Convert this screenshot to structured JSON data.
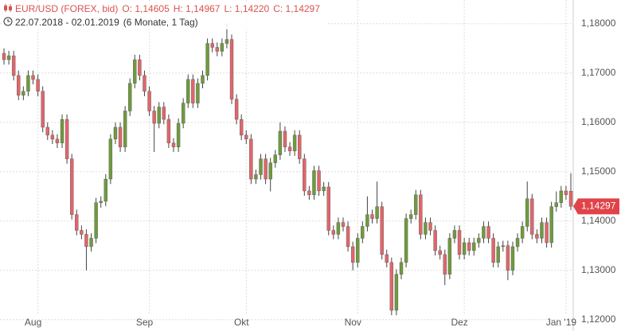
{
  "header": {
    "symbol": "EUR/USD (FOREX, bid)",
    "open": "O: 1,14605",
    "high": "H: 1,14967",
    "low": "L: 1,14220",
    "close": "C: 1,14297",
    "range": "22.07.2018 - 02.01.2019",
    "period": "(6 Monate, 1 Tag)"
  },
  "chart_data": {
    "type": "candlestick",
    "categories": [
      null,
      null,
      null,
      null,
      null,
      null,
      null,
      "Aug",
      null,
      null,
      null,
      null,
      null,
      null,
      null,
      null,
      null,
      null,
      null,
      null,
      null,
      null,
      null,
      null,
      null,
      null,
      null,
      null,
      null,
      null,
      "Sep",
      null,
      null,
      null,
      null,
      null,
      null,
      null,
      null,
      null,
      null,
      null,
      null,
      null,
      null,
      null,
      null,
      null,
      null,
      null,
      "Okt",
      null,
      null,
      null,
      null,
      null,
      null,
      null,
      null,
      null,
      null,
      null,
      null,
      null,
      null,
      null,
      null,
      null,
      null,
      null,
      null,
      null,
      null,
      "Nov",
      null,
      null,
      null,
      null,
      null,
      null,
      null,
      null,
      null,
      null,
      null,
      null,
      null,
      null,
      null,
      null,
      null,
      null,
      null,
      null,
      null,
      "Dez",
      null,
      null,
      null,
      null,
      null,
      null,
      null,
      null,
      null,
      null,
      null,
      null,
      null,
      null,
      null,
      null,
      null,
      null,
      null,
      null,
      "Jan '19",
      null
    ],
    "open": [
      1.174,
      1.1727,
      1.1735,
      1.1695,
      1.1655,
      1.1663,
      1.1695,
      1.1687,
      1.1663,
      1.159,
      1.1574,
      1.1566,
      1.1558,
      1.1606,
      1.1526,
      1.1413,
      1.1381,
      1.1373,
      1.1348,
      1.1365,
      1.1437,
      1.144,
      1.1485,
      1.1566,
      1.159,
      1.155,
      1.1623,
      1.1679,
      1.1727,
      1.1695,
      1.1663,
      1.1623,
      1.1598,
      1.1631,
      1.1606,
      1.1558,
      1.155,
      1.1598,
      1.1639,
      1.1687,
      1.1639,
      1.1679,
      1.1695,
      1.176,
      1.1752,
      1.1744,
      1.176,
      1.1768,
      1.1647,
      1.1606,
      1.1574,
      1.1566,
      1.1485,
      1.1494,
      1.1526,
      1.1485,
      1.1518,
      1.1534,
      1.1582,
      1.155,
      1.1542,
      1.1574,
      1.1526,
      1.1461,
      1.1453,
      1.1502,
      1.1461,
      1.1469,
      1.1381,
      1.1373,
      1.1397,
      1.1389,
      1.1348,
      1.1316,
      1.1365,
      1.1389,
      1.1413,
      1.1405,
      1.1429,
      1.1332,
      1.1316,
      1.1219,
      1.1292,
      1.1316,
      1.1405,
      1.1413,
      1.1453,
      1.1373,
      1.1397,
      1.1381,
      1.134,
      1.1332,
      1.1292,
      1.1365,
      1.1381,
      1.1332,
      1.1356,
      1.134,
      1.1356,
      1.1365,
      1.1389,
      1.1365,
      1.1316,
      1.1348,
      1.135,
      1.13,
      1.1348,
      1.1365,
      1.1389,
      1.1445,
      1.1373,
      1.1365,
      1.1397,
      1.1356,
      1.1429,
      1.1437,
      1.1461,
      1.14605
    ],
    "high": [
      1.175,
      1.1745,
      1.1745,
      1.1705,
      1.1673,
      1.1705,
      1.1705,
      1.1697,
      1.1673,
      1.16,
      1.1584,
      1.1576,
      1.1616,
      1.1616,
      1.1536,
      1.1423,
      1.1391,
      1.1383,
      1.1375,
      1.1447,
      1.145,
      1.1495,
      1.1576,
      1.16,
      1.16,
      1.1633,
      1.1689,
      1.1737,
      1.1737,
      1.1705,
      1.1673,
      1.1633,
      1.1641,
      1.1641,
      1.1616,
      1.1568,
      1.1608,
      1.1649,
      1.1697,
      1.1697,
      1.1689,
      1.1705,
      1.177,
      1.177,
      1.1762,
      1.177,
      1.18,
      1.1778,
      1.1657,
      1.1616,
      1.1584,
      1.1576,
      1.1504,
      1.1536,
      1.1536,
      1.1528,
      1.1544,
      1.16,
      1.1592,
      1.156,
      1.1584,
      1.1584,
      1.1536,
      1.1471,
      1.1512,
      1.1512,
      1.1479,
      1.1479,
      1.1391,
      1.1407,
      1.1407,
      1.1399,
      1.1358,
      1.1375,
      1.1399,
      1.145,
      1.1423,
      1.148,
      1.1439,
      1.1342,
      1.1326,
      1.1302,
      1.1326,
      1.1415,
      1.1423,
      1.1463,
      1.1463,
      1.1407,
      1.1407,
      1.1391,
      1.135,
      1.1342,
      1.1375,
      1.1391,
      1.1391,
      1.1366,
      1.1366,
      1.1366,
      1.1375,
      1.1399,
      1.1399,
      1.1375,
      1.1358,
      1.136,
      1.136,
      1.1358,
      1.1375,
      1.1399,
      1.148,
      1.1455,
      1.1383,
      1.1407,
      1.1407,
      1.1439,
      1.146,
      1.1471,
      1.1471,
      1.14967
    ],
    "low": [
      1.1717,
      1.1717,
      1.1685,
      1.1645,
      1.1645,
      1.1653,
      1.1677,
      1.1653,
      1.158,
      1.1564,
      1.1556,
      1.1548,
      1.1548,
      1.1516,
      1.1403,
      1.1371,
      1.1363,
      1.13,
      1.1338,
      1.1355,
      1.1427,
      1.143,
      1.1475,
      1.1556,
      1.154,
      1.154,
      1.1613,
      1.1669,
      1.1685,
      1.1653,
      1.1613,
      1.154,
      1.1588,
      1.1596,
      1.1548,
      1.154,
      1.154,
      1.1588,
      1.1629,
      1.1629,
      1.1629,
      1.1669,
      1.1685,
      1.1742,
      1.1734,
      1.1734,
      1.175,
      1.1637,
      1.1596,
      1.1564,
      1.1556,
      1.1475,
      1.1475,
      1.1484,
      1.1475,
      1.146,
      1.1508,
      1.1524,
      1.154,
      1.1532,
      1.1532,
      1.1516,
      1.1451,
      1.1443,
      1.1443,
      1.1451,
      1.1451,
      1.1371,
      1.1363,
      1.1363,
      1.1379,
      1.1338,
      1.13,
      1.1306,
      1.1355,
      1.1379,
      1.1395,
      1.1395,
      1.1322,
      1.1306,
      1.1209,
      1.1209,
      1.1282,
      1.1306,
      1.1395,
      1.1403,
      1.1363,
      1.1363,
      1.1371,
      1.133,
      1.1322,
      1.127,
      1.1282,
      1.1355,
      1.1322,
      1.1322,
      1.133,
      1.133,
      1.1346,
      1.1355,
      1.1355,
      1.1306,
      1.1306,
      1.1338,
      1.128,
      1.129,
      1.1338,
      1.1355,
      1.1379,
      1.1363,
      1.1355,
      1.1355,
      1.1346,
      1.1346,
      1.1419,
      1.1427,
      1.1443,
      1.1422
    ],
    "close": [
      1.1727,
      1.1735,
      1.1695,
      1.1655,
      1.1663,
      1.1695,
      1.1687,
      1.1663,
      1.159,
      1.1574,
      1.1566,
      1.1558,
      1.1606,
      1.1526,
      1.1413,
      1.1381,
      1.1373,
      1.1348,
      1.1365,
      1.1437,
      1.144,
      1.1485,
      1.1566,
      1.159,
      1.155,
      1.1623,
      1.1679,
      1.1727,
      1.1695,
      1.1663,
      1.1623,
      1.1598,
      1.1631,
      1.1606,
      1.1558,
      1.155,
      1.1598,
      1.1639,
      1.1687,
      1.1639,
      1.1679,
      1.1695,
      1.176,
      1.1752,
      1.1744,
      1.176,
      1.1768,
      1.1647,
      1.1606,
      1.1574,
      1.1566,
      1.1485,
      1.1494,
      1.1526,
      1.1485,
      1.1518,
      1.1534,
      1.1582,
      1.155,
      1.1542,
      1.1574,
      1.1526,
      1.1461,
      1.1453,
      1.1502,
      1.1461,
      1.1469,
      1.1381,
      1.1373,
      1.1397,
      1.1389,
      1.1348,
      1.1316,
      1.1365,
      1.1389,
      1.1413,
      1.1405,
      1.1429,
      1.1332,
      1.1316,
      1.1219,
      1.1292,
      1.1316,
      1.1405,
      1.1413,
      1.1453,
      1.1373,
      1.1397,
      1.1381,
      1.134,
      1.1332,
      1.1292,
      1.1365,
      1.1381,
      1.1332,
      1.1356,
      1.134,
      1.1356,
      1.1365,
      1.1389,
      1.1365,
      1.1316,
      1.1348,
      1.135,
      1.13,
      1.1348,
      1.1365,
      1.1389,
      1.1445,
      1.1373,
      1.1365,
      1.1397,
      1.1356,
      1.1429,
      1.1437,
      1.1461,
      1.1453,
      1.14297
    ],
    "last_value": 1.14297,
    "last_value_label": "1,14297",
    "up_color": "#6f9a3e",
    "down_color": "#e0666a",
    "wick_color": "#444444",
    "grid": true,
    "ylim": [
      1.1177,
      1.1848
    ],
    "yticks": [
      {
        "value": 1.12,
        "label": "1,12000"
      },
      {
        "value": 1.13,
        "label": "1,13000"
      },
      {
        "value": 1.14,
        "label": "1,14000"
      },
      {
        "value": 1.15,
        "label": "1,15000"
      },
      {
        "value": 1.16,
        "label": "1,16000"
      },
      {
        "value": 1.17,
        "label": "1,17000"
      },
      {
        "value": 1.18,
        "label": "1,18000"
      }
    ]
  }
}
